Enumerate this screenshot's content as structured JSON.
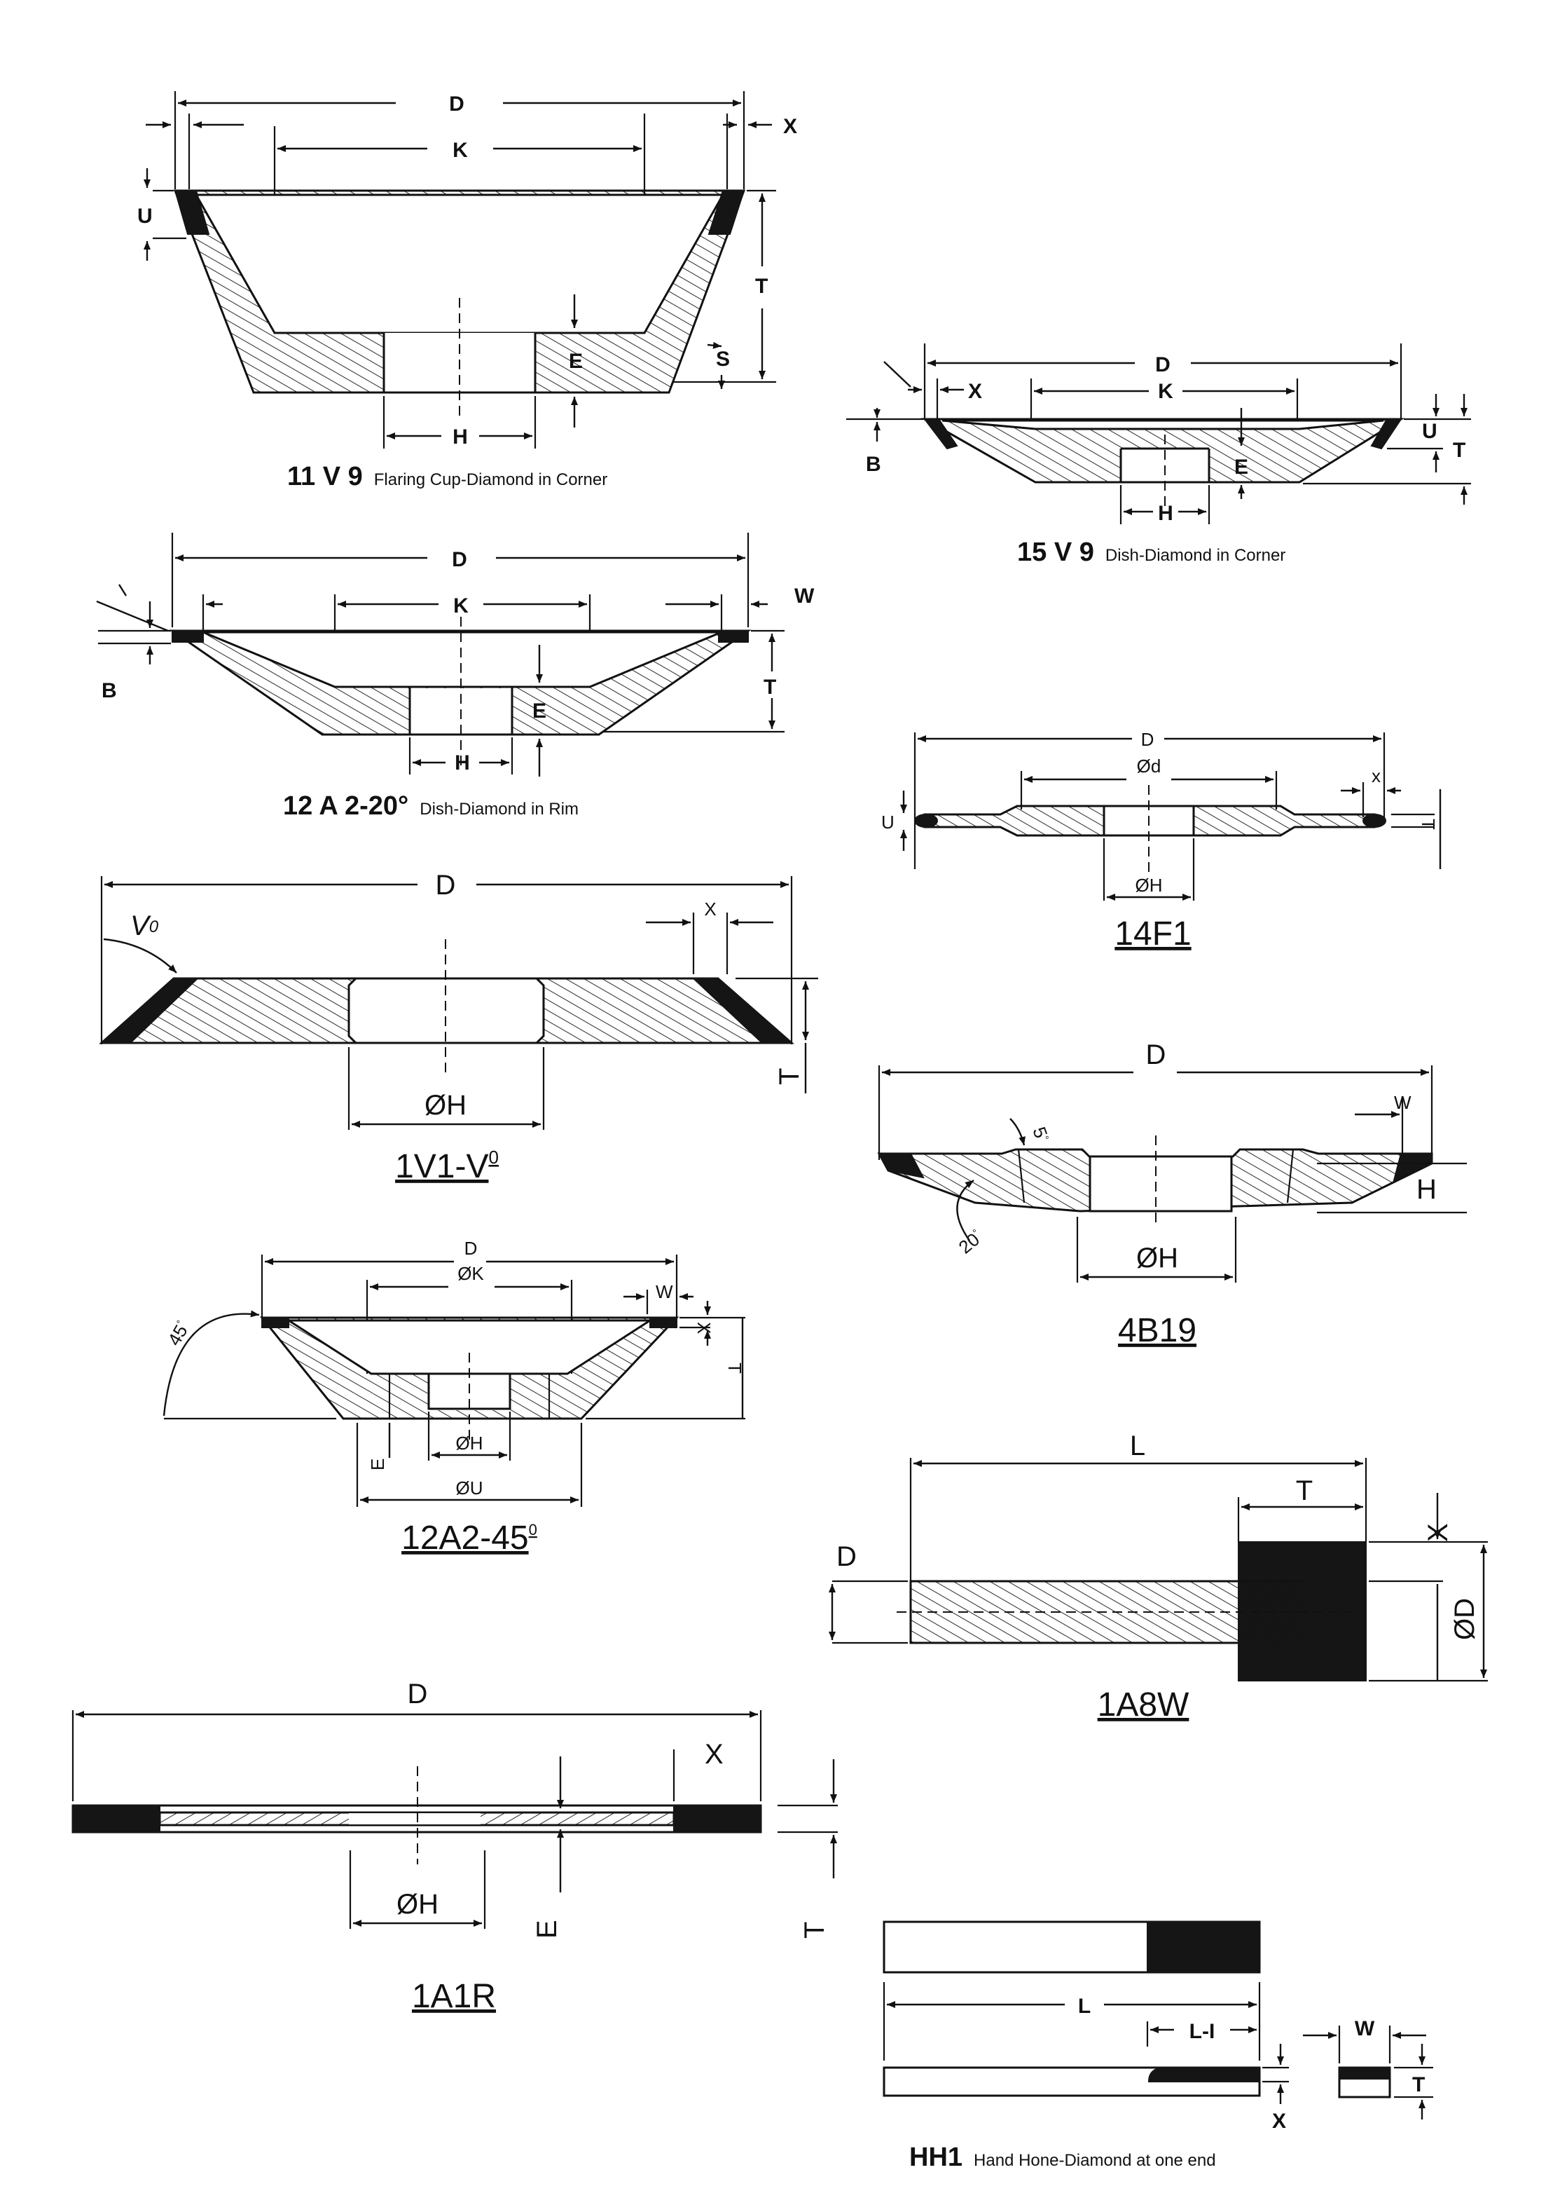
{
  "colors": {
    "ink": "#111111",
    "diamond": "#151515",
    "paper": "#ffffff"
  },
  "drawings": [
    {
      "id": "11v9",
      "code": "11 V 9",
      "desc": "Flaring Cup-Diamond in Corner",
      "labels": {
        "d": "D",
        "k": "K",
        "x": "X",
        "u": "U",
        "t": "T",
        "s": "S",
        "e": "E",
        "h": "H"
      }
    },
    {
      "id": "15v9",
      "code": "15 V 9",
      "desc": "Dish-Diamond in Corner",
      "labels": {
        "d": "D",
        "x": "X",
        "k": "K",
        "b": "B",
        "u": "U",
        "t": "T",
        "e": "E",
        "h": "H"
      }
    },
    {
      "id": "12a2-20",
      "code": "12 A 2-20°",
      "desc": "Dish-Diamond in Rim",
      "labels": {
        "d": "D",
        "k": "K",
        "w": "W",
        "b": "B",
        "t": "T",
        "e": "E",
        "h": "H"
      }
    },
    {
      "id": "14f1",
      "code": "14F1",
      "desc": "",
      "labels": {
        "d": "D",
        "dd": "Ød",
        "x": "x",
        "u": "U",
        "t": "T",
        "h": "ØH"
      }
    },
    {
      "id": "1v1",
      "code": "1V1-V",
      "code_sup": "0",
      "desc": "",
      "labels": {
        "d": "D",
        "v": "V",
        "v_sup": "0",
        "x": "X",
        "t": "T",
        "h": "ØH"
      }
    },
    {
      "id": "4b19",
      "code": "4B19",
      "desc": "",
      "labels": {
        "d": "D",
        "w": "W",
        "a5": "5",
        "a20": "20",
        "h_side": "H",
        "h": "ØH"
      }
    },
    {
      "id": "12a2-45",
      "code": "12A2-45",
      "code_sup": "0",
      "desc": "",
      "labels": {
        "d": "D",
        "k": "ØK",
        "w": "W",
        "x": "X",
        "t": "T",
        "a45": "45",
        "e": "E",
        "h": "ØH",
        "u": "ØU"
      }
    },
    {
      "id": "1a8w",
      "code": "1A8W",
      "desc": "",
      "labels": {
        "l": "L",
        "t": "T",
        "d": "D",
        "x": "X",
        "od": "ØD"
      }
    },
    {
      "id": "1a1r",
      "code": "1A1R",
      "desc": "",
      "labels": {
        "d": "D",
        "x": "X",
        "h": "ØH",
        "e": "E",
        "t": "T"
      }
    },
    {
      "id": "hh1",
      "code": "HH1",
      "desc": "Hand Hone-Diamond at one end",
      "labels": {
        "l": "L",
        "li": "L-I",
        "w": "W",
        "t": "T",
        "x": "X"
      }
    }
  ]
}
